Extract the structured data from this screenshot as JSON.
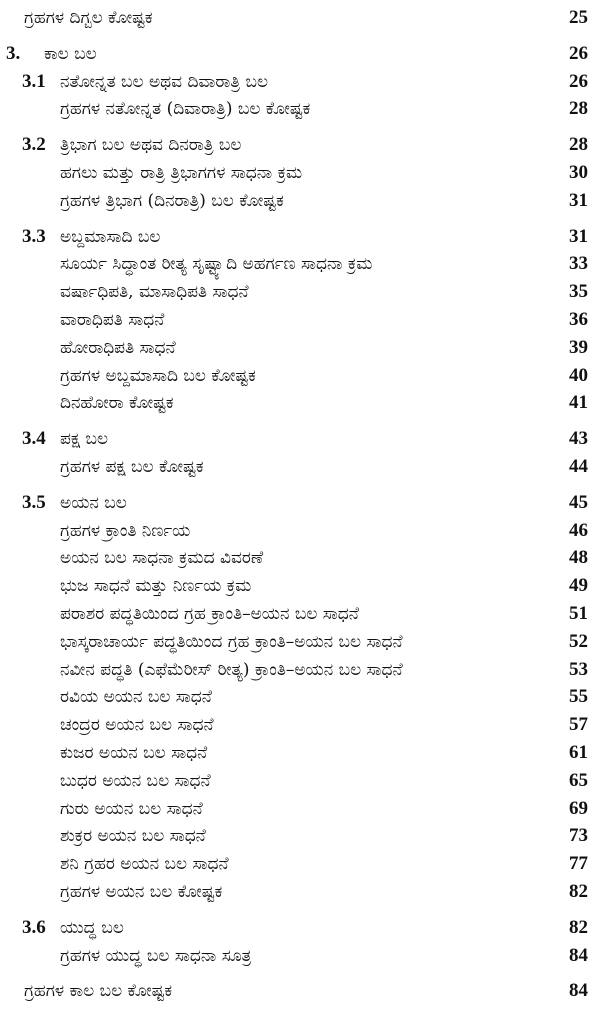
{
  "items": [
    {
      "title": "ಗ್ರಹಗಳ ದಿಗ್ಬಲ ಕೋಷ್ಟಕ",
      "page": 25
    },
    {
      "number": "3.",
      "title": "ಕಾಲ ಬಲ",
      "page": 26,
      "sections": [
        {
          "number": "3.1",
          "title": "ನತೋನ್ನತ ಬಲ ಅಥವ ದಿವಾರಾತ್ರಿ ಬಲ",
          "page": 26,
          "items": [
            {
              "title": "ಗ್ರಹಗಳ ನತೋನ್ನತ (ದಿವಾರಾತ್ರಿ) ಬಲ ಕೋಷ್ಟಕ",
              "page": 28
            }
          ]
        },
        {
          "number": "3.2",
          "title": "ತ್ರಿಭಾಗ ಬಲ ಅಥವ ದಿನರಾತ್ರಿ ಬಲ",
          "page": 28,
          "items": [
            {
              "title": "ಹಗಲು ಮತ್ತು ರಾತ್ರಿ ತ್ರಿಭಾಗಗಳ ಸಾಧನಾ ಕ್ರಮ",
              "page": 30
            },
            {
              "title": "ಗ್ರಹಗಳ ತ್ರಿಭಾಗ (ದಿನರಾತ್ರಿ) ಬಲ ಕೋಷ್ಟಕ",
              "page": 31
            }
          ]
        },
        {
          "number": "3.3",
          "title": "ಅಬ್ದಮಾಸಾದಿ ಬಲ",
          "page": 31,
          "items": [
            {
              "title": "ಸೂರ್ಯ ಸಿದ್ಧಾಂತ ರೀತ್ಯ ಸೃಷ್ಟ್ಯಾದಿ ಅಹರ್ಗಣ ಸಾಧನಾ ಕ್ರಮ",
              "page": 33
            },
            {
              "title": "ವರ್ಷಾಧಿಪತಿ, ಮಾಸಾಧಿಪತಿ ಸಾಧನೆ",
              "page": 35
            },
            {
              "title": "ವಾರಾಧಿಪತಿ ಸಾಧನೆ",
              "page": 36
            },
            {
              "title": "ಹೋರಾಧಿಪತಿ ಸಾಧನೆ",
              "page": 39
            },
            {
              "title": "ಗ್ರಹಗಳ ಅಬ್ದಮಾಸಾದಿ ಬಲ ಕೋಷ್ಟಕ",
              "page": 40
            },
            {
              "title": "ದಿನಹೋರಾ ಕೋಷ್ಟಕ",
              "page": 41
            }
          ]
        },
        {
          "number": "3.4",
          "title": "ಪಕ್ಷ ಬಲ",
          "page": 43,
          "items": [
            {
              "title": "ಗ್ರಹಗಳ ಪಕ್ಷ ಬಲ ಕೋಷ್ಟಕ",
              "page": 44
            }
          ]
        },
        {
          "number": "3.5",
          "title": "ಅಯನ ಬಲ",
          "page": 45,
          "items": [
            {
              "title": "ಗ್ರಹಗಳ ಕ್ರಾಂತಿ ನಿರ್ಣಯ",
              "page": 46
            },
            {
              "title": "ಅಯನ ಬಲ ಸಾಧನಾ ಕ್ರಮದ ವಿವರಣೆ",
              "page": 48
            },
            {
              "title": "ಭುಜ ಸಾಧನೆ ಮತ್ತು ನಿರ್ಣಯ ಕ್ರಮ",
              "page": 49
            },
            {
              "title": "ಪರಾಶರ ಪದ್ಧತಿಯಿಂದ ಗ್ರಹ ಕ್ರಾಂತಿ–ಅಯನ ಬಲ ಸಾಧನೆ",
              "page": 51
            },
            {
              "title": "ಭಾಸ್ಕರಾಚಾರ್ಯ ಪದ್ಧತಿಯಿಂದ ಗ್ರಹ ಕ್ರಾಂತಿ–ಅಯನ ಬಲ ಸಾಧನೆ",
              "page": 52
            },
            {
              "title": "ನವೀನ ಪದ್ಧತಿ (ಎಫೆಮೆರೀಸ್ ರೀತ್ಯ) ಕ್ರಾಂತಿ–ಅಯನ ಬಲ ಸಾಧನೆ",
              "page": 53
            },
            {
              "title": "ರವಿಯ ಅಯನ ಬಲ ಸಾಧನೆ",
              "page": 55
            },
            {
              "title": "ಚಂದ್ರರ ಅಯನ ಬಲ ಸಾಧನೆ",
              "page": 57
            },
            {
              "title": "ಕುಜರ ಅಯನ ಬಲ ಸಾಧನೆ",
              "page": 61
            },
            {
              "title": "ಬುಧರ ಅಯನ ಬಲ ಸಾಧನೆ",
              "page": 65
            },
            {
              "title": "ಗುರು ಅಯನ ಬಲ ಸಾಧನೆ",
              "page": 69
            },
            {
              "title": "ಶುಕ್ರರ ಅಯನ ಬಲ ಸಾಧನೆ",
              "page": 73
            },
            {
              "title": "ಶನಿ ಗ್ರಹರ ಅಯನ ಬಲ ಸಾಧನೆ",
              "page": 77
            },
            {
              "title": "ಗ್ರಹಗಳ ಅಯನ ಬಲ ಕೋಷ್ಟಕ",
              "page": 82
            }
          ]
        },
        {
          "number": "3.6",
          "title": "ಯುದ್ಧ ಬಲ",
          "page": 82,
          "items": [
            {
              "title": "ಗ್ರಹಗಳ ಯುದ್ಧ ಬಲ ಸಾಧನಾ ಸೂತ್ರ",
              "page": 84
            }
          ]
        }
      ]
    },
    {
      "title": "ಗ್ರಹಗಳ ಕಾಲ ಬಲ ಕೋಷ್ಟಕ",
      "page": 84
    }
  ]
}
